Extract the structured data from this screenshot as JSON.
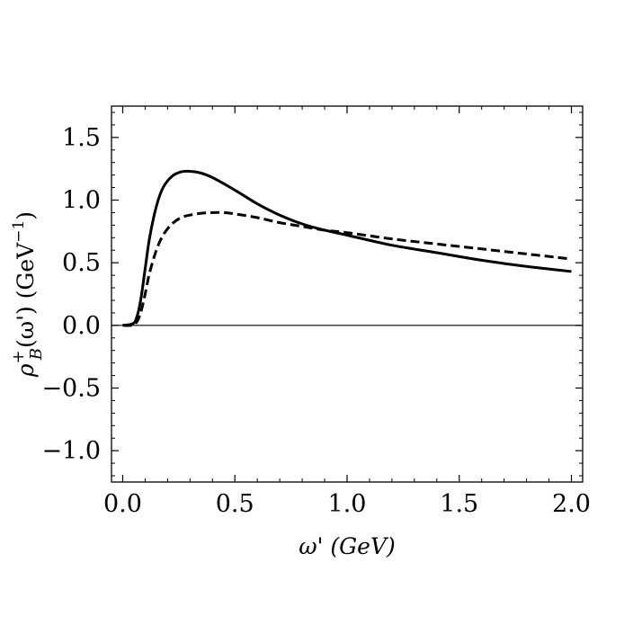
{
  "chart_data": {
    "type": "line",
    "title": "",
    "xlabel": "ω' (GeV)",
    "ylabel": {
      "rho": "ρ",
      "superscript": "+",
      "subscript": "B",
      "argument": "(ω') (GeV",
      "exponent": "−1",
      "close": ")"
    },
    "xlim": [
      -0.05,
      2.05
    ],
    "ylim": [
      -1.25,
      1.75
    ],
    "xticks": [
      0.0,
      0.5,
      1.0,
      1.5,
      2.0
    ],
    "xtick_labels": [
      "0.0",
      "0.5",
      "1.0",
      "1.5",
      "2.0"
    ],
    "yticks": [
      1.5,
      1.0,
      0.5,
      0.0,
      -0.5,
      -1.0
    ],
    "ytick_labels": [
      "1.5",
      "1.0",
      "0.5",
      "0.0",
      "−0.5",
      "−1.0"
    ],
    "grid": false,
    "zero_line": true,
    "series": [
      {
        "name": "solid",
        "style": "solid",
        "x": [
          0.0,
          0.04,
          0.06,
          0.08,
          0.1,
          0.12,
          0.15,
          0.18,
          0.22,
          0.26,
          0.3,
          0.35,
          0.4,
          0.5,
          0.6,
          0.7,
          0.8,
          0.9,
          1.0,
          1.2,
          1.4,
          1.6,
          1.8,
          2.0
        ],
        "y": [
          0.0,
          0.01,
          0.05,
          0.2,
          0.45,
          0.7,
          0.95,
          1.1,
          1.19,
          1.225,
          1.23,
          1.215,
          1.18,
          1.08,
          0.97,
          0.88,
          0.81,
          0.76,
          0.72,
          0.64,
          0.58,
          0.52,
          0.47,
          0.43
        ]
      },
      {
        "name": "dashed",
        "style": "dashed",
        "x": [
          0.0,
          0.04,
          0.06,
          0.08,
          0.1,
          0.12,
          0.15,
          0.18,
          0.22,
          0.26,
          0.3,
          0.35,
          0.4,
          0.45,
          0.5,
          0.6,
          0.7,
          0.8,
          0.9,
          1.0,
          1.2,
          1.4,
          1.6,
          1.8,
          2.0
        ],
        "y": [
          0.0,
          0.0,
          0.02,
          0.1,
          0.25,
          0.42,
          0.6,
          0.72,
          0.81,
          0.86,
          0.88,
          0.895,
          0.9,
          0.9,
          0.89,
          0.86,
          0.82,
          0.79,
          0.76,
          0.74,
          0.69,
          0.65,
          0.61,
          0.57,
          0.53
        ]
      }
    ]
  }
}
